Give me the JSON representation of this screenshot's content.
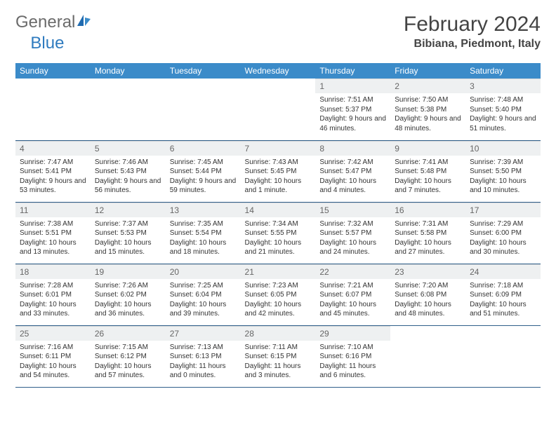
{
  "brand": {
    "general": "General",
    "blue": "Blue"
  },
  "title": "February 2024",
  "location": "Bibiana, Piedmont, Italy",
  "colors": {
    "header_bg": "#3b8bc9",
    "header_text": "#ffffff",
    "daynum_bg": "#eef0f1",
    "border": "#2f5f8a",
    "logo_gray": "#6b6b6b",
    "logo_blue": "#2f7bbf"
  },
  "day_headers": [
    "Sunday",
    "Monday",
    "Tuesday",
    "Wednesday",
    "Thursday",
    "Friday",
    "Saturday"
  ],
  "weeks": [
    [
      null,
      null,
      null,
      null,
      {
        "n": "1",
        "sunrise": "7:51 AM",
        "sunset": "5:37 PM",
        "day": "9 hours and 46 minutes."
      },
      {
        "n": "2",
        "sunrise": "7:50 AM",
        "sunset": "5:38 PM",
        "day": "9 hours and 48 minutes."
      },
      {
        "n": "3",
        "sunrise": "7:48 AM",
        "sunset": "5:40 PM",
        "day": "9 hours and 51 minutes."
      }
    ],
    [
      {
        "n": "4",
        "sunrise": "7:47 AM",
        "sunset": "5:41 PM",
        "day": "9 hours and 53 minutes."
      },
      {
        "n": "5",
        "sunrise": "7:46 AM",
        "sunset": "5:43 PM",
        "day": "9 hours and 56 minutes."
      },
      {
        "n": "6",
        "sunrise": "7:45 AM",
        "sunset": "5:44 PM",
        "day": "9 hours and 59 minutes."
      },
      {
        "n": "7",
        "sunrise": "7:43 AM",
        "sunset": "5:45 PM",
        "day": "10 hours and 1 minute."
      },
      {
        "n": "8",
        "sunrise": "7:42 AM",
        "sunset": "5:47 PM",
        "day": "10 hours and 4 minutes."
      },
      {
        "n": "9",
        "sunrise": "7:41 AM",
        "sunset": "5:48 PM",
        "day": "10 hours and 7 minutes."
      },
      {
        "n": "10",
        "sunrise": "7:39 AM",
        "sunset": "5:50 PM",
        "day": "10 hours and 10 minutes."
      }
    ],
    [
      {
        "n": "11",
        "sunrise": "7:38 AM",
        "sunset": "5:51 PM",
        "day": "10 hours and 13 minutes."
      },
      {
        "n": "12",
        "sunrise": "7:37 AM",
        "sunset": "5:53 PM",
        "day": "10 hours and 15 minutes."
      },
      {
        "n": "13",
        "sunrise": "7:35 AM",
        "sunset": "5:54 PM",
        "day": "10 hours and 18 minutes."
      },
      {
        "n": "14",
        "sunrise": "7:34 AM",
        "sunset": "5:55 PM",
        "day": "10 hours and 21 minutes."
      },
      {
        "n": "15",
        "sunrise": "7:32 AM",
        "sunset": "5:57 PM",
        "day": "10 hours and 24 minutes."
      },
      {
        "n": "16",
        "sunrise": "7:31 AM",
        "sunset": "5:58 PM",
        "day": "10 hours and 27 minutes."
      },
      {
        "n": "17",
        "sunrise": "7:29 AM",
        "sunset": "6:00 PM",
        "day": "10 hours and 30 minutes."
      }
    ],
    [
      {
        "n": "18",
        "sunrise": "7:28 AM",
        "sunset": "6:01 PM",
        "day": "10 hours and 33 minutes."
      },
      {
        "n": "19",
        "sunrise": "7:26 AM",
        "sunset": "6:02 PM",
        "day": "10 hours and 36 minutes."
      },
      {
        "n": "20",
        "sunrise": "7:25 AM",
        "sunset": "6:04 PM",
        "day": "10 hours and 39 minutes."
      },
      {
        "n": "21",
        "sunrise": "7:23 AM",
        "sunset": "6:05 PM",
        "day": "10 hours and 42 minutes."
      },
      {
        "n": "22",
        "sunrise": "7:21 AM",
        "sunset": "6:07 PM",
        "day": "10 hours and 45 minutes."
      },
      {
        "n": "23",
        "sunrise": "7:20 AM",
        "sunset": "6:08 PM",
        "day": "10 hours and 48 minutes."
      },
      {
        "n": "24",
        "sunrise": "7:18 AM",
        "sunset": "6:09 PM",
        "day": "10 hours and 51 minutes."
      }
    ],
    [
      {
        "n": "25",
        "sunrise": "7:16 AM",
        "sunset": "6:11 PM",
        "day": "10 hours and 54 minutes."
      },
      {
        "n": "26",
        "sunrise": "7:15 AM",
        "sunset": "6:12 PM",
        "day": "10 hours and 57 minutes."
      },
      {
        "n": "27",
        "sunrise": "7:13 AM",
        "sunset": "6:13 PM",
        "day": "11 hours and 0 minutes."
      },
      {
        "n": "28",
        "sunrise": "7:11 AM",
        "sunset": "6:15 PM",
        "day": "11 hours and 3 minutes."
      },
      {
        "n": "29",
        "sunrise": "7:10 AM",
        "sunset": "6:16 PM",
        "day": "11 hours and 6 minutes."
      },
      null,
      null
    ]
  ],
  "labels": {
    "sunrise": "Sunrise:",
    "sunset": "Sunset:",
    "daylight": "Daylight:"
  }
}
